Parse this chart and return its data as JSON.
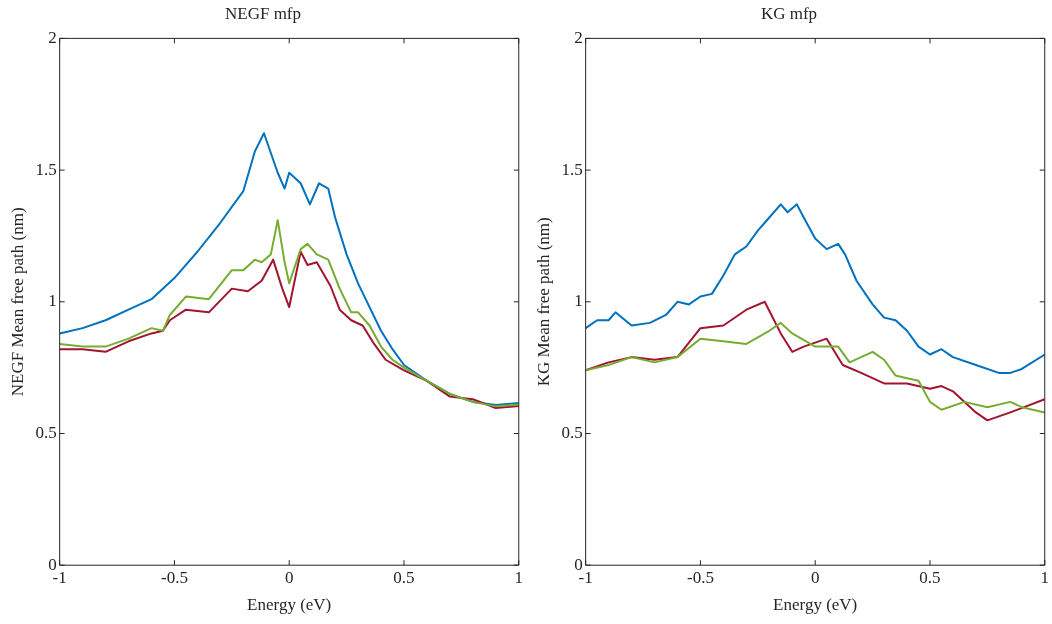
{
  "chart_data": [
    {
      "type": "line",
      "title": "NEGF mfp",
      "xlabel": "Energy (eV)",
      "ylabel": "NEGF Mean free path (nm)",
      "xlim": [
        -1,
        1
      ],
      "ylim": [
        0,
        2
      ],
      "xticks": [
        -1,
        -0.5,
        0,
        0.5,
        1
      ],
      "yticks": [
        0,
        0.5,
        1,
        1.5,
        2
      ],
      "series": [
        {
          "color": "#0072bd",
          "x": [
            -1,
            -0.9,
            -0.8,
            -0.7,
            -0.6,
            -0.5,
            -0.4,
            -0.3,
            -0.2,
            -0.15,
            -0.11,
            -0.05,
            -0.02,
            0,
            0.05,
            0.09,
            0.13,
            0.17,
            0.2,
            0.25,
            0.3,
            0.35,
            0.4,
            0.45,
            0.5,
            0.6,
            0.7,
            0.8,
            0.9,
            1
          ],
          "values": [
            0.88,
            0.9,
            0.93,
            0.97,
            1.01,
            1.09,
            1.19,
            1.3,
            1.42,
            1.57,
            1.64,
            1.49,
            1.43,
            1.49,
            1.45,
            1.37,
            1.45,
            1.43,
            1.32,
            1.18,
            1.07,
            0.98,
            0.89,
            0.82,
            0.76,
            0.7,
            0.65,
            0.62,
            0.608,
            0.616
          ]
        },
        {
          "color": "#a2142f",
          "x": [
            -1,
            -0.9,
            -0.8,
            -0.7,
            -0.6,
            -0.55,
            -0.52,
            -0.45,
            -0.35,
            -0.25,
            -0.18,
            -0.12,
            -0.07,
            -0.03,
            0,
            0.05,
            0.08,
            0.12,
            0.18,
            0.22,
            0.27,
            0.32,
            0.37,
            0.42,
            0.5,
            0.6,
            0.7,
            0.8,
            0.9,
            1
          ],
          "values": [
            0.82,
            0.82,
            0.81,
            0.85,
            0.88,
            0.89,
            0.93,
            0.97,
            0.96,
            1.05,
            1.04,
            1.08,
            1.16,
            1.05,
            0.98,
            1.19,
            1.14,
            1.15,
            1.06,
            0.97,
            0.93,
            0.91,
            0.84,
            0.78,
            0.74,
            0.7,
            0.64,
            0.63,
            0.597,
            0.604
          ]
        },
        {
          "color": "#77ac30",
          "x": [
            -1,
            -0.9,
            -0.8,
            -0.7,
            -0.6,
            -0.55,
            -0.52,
            -0.45,
            -0.35,
            -0.25,
            -0.2,
            -0.15,
            -0.12,
            -0.08,
            -0.05,
            -0.02,
            0,
            0.05,
            0.08,
            0.12,
            0.17,
            0.22,
            0.27,
            0.3,
            0.35,
            0.4,
            0.45,
            0.5,
            0.6,
            0.7,
            0.8,
            0.9,
            1
          ],
          "values": [
            0.84,
            0.83,
            0.83,
            0.86,
            0.9,
            0.89,
            0.95,
            1.02,
            1.01,
            1.12,
            1.12,
            1.16,
            1.15,
            1.18,
            1.31,
            1.15,
            1.07,
            1.2,
            1.22,
            1.18,
            1.16,
            1.05,
            0.96,
            0.96,
            0.91,
            0.83,
            0.78,
            0.75,
            0.7,
            0.65,
            0.62,
            0.603,
            0.61
          ]
        }
      ]
    },
    {
      "type": "line",
      "title": "KG mfp",
      "xlabel": "Energy (eV)",
      "ylabel": "KG Mean free path (nm)",
      "xlim": [
        -1,
        1
      ],
      "ylim": [
        0,
        2
      ],
      "xticks": [
        -1,
        -0.5,
        0,
        0.5,
        1
      ],
      "yticks": [
        0,
        0.5,
        1,
        1.5,
        2
      ],
      "series": [
        {
          "color": "#0072bd",
          "x": [
            -1,
            -0.95,
            -0.9,
            -0.87,
            -0.8,
            -0.72,
            -0.65,
            -0.6,
            -0.55,
            -0.5,
            -0.45,
            -0.4,
            -0.35,
            -0.3,
            -0.25,
            -0.2,
            -0.15,
            -0.12,
            -0.08,
            -0.05,
            0,
            0.05,
            0.1,
            0.13,
            0.18,
            0.25,
            0.3,
            0.35,
            0.4,
            0.45,
            0.5,
            0.55,
            0.6,
            0.7,
            0.8,
            0.85,
            0.9,
            1
          ],
          "values": [
            0.9,
            0.93,
            0.93,
            0.96,
            0.91,
            0.92,
            0.95,
            1,
            0.99,
            1.02,
            1.03,
            1.1,
            1.18,
            1.21,
            1.27,
            1.32,
            1.37,
            1.34,
            1.37,
            1.32,
            1.24,
            1.2,
            1.22,
            1.18,
            1.08,
            0.99,
            0.94,
            0.93,
            0.89,
            0.83,
            0.8,
            0.82,
            0.79,
            0.76,
            0.73,
            0.73,
            0.745,
            0.8
          ]
        },
        {
          "color": "#a2142f",
          "x": [
            -1,
            -0.9,
            -0.8,
            -0.7,
            -0.6,
            -0.5,
            -0.4,
            -0.3,
            -0.22,
            -0.15,
            -0.1,
            -0.05,
            0.05,
            0.12,
            0.2,
            0.3,
            0.4,
            0.5,
            0.55,
            0.6,
            0.7,
            0.75,
            0.85,
            1
          ],
          "values": [
            0.74,
            0.77,
            0.79,
            0.78,
            0.79,
            0.9,
            0.91,
            0.97,
            1,
            0.88,
            0.81,
            0.83,
            0.86,
            0.76,
            0.73,
            0.69,
            0.69,
            0.67,
            0.68,
            0.66,
            0.58,
            0.55,
            0.58,
            0.63
          ]
        },
        {
          "color": "#77ac30",
          "x": [
            -1,
            -0.9,
            -0.8,
            -0.7,
            -0.6,
            -0.5,
            -0.4,
            -0.3,
            -0.2,
            -0.15,
            -0.1,
            0,
            0.05,
            0.1,
            0.15,
            0.2,
            0.25,
            0.3,
            0.35,
            0.4,
            0.45,
            0.5,
            0.55,
            0.65,
            0.75,
            0.85,
            0.9,
            1
          ],
          "values": [
            0.74,
            0.76,
            0.79,
            0.77,
            0.79,
            0.86,
            0.85,
            0.84,
            0.89,
            0.92,
            0.88,
            0.83,
            0.83,
            0.83,
            0.77,
            0.79,
            0.81,
            0.78,
            0.72,
            0.71,
            0.7,
            0.62,
            0.59,
            0.62,
            0.6,
            0.62,
            0.6,
            0.58
          ]
        }
      ]
    }
  ]
}
